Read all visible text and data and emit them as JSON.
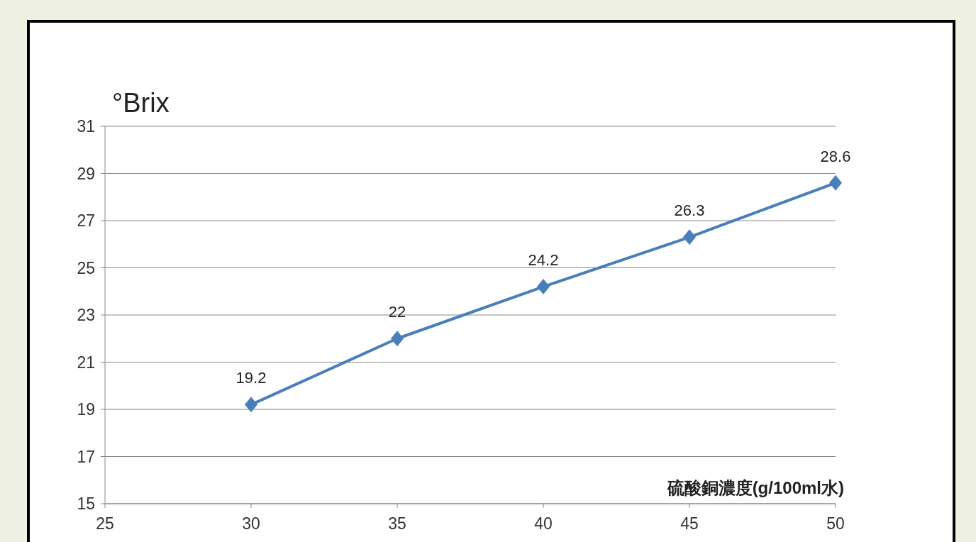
{
  "chart_data": {
    "type": "line",
    "xlabel": "硫酸銅濃度(g/100ml水)",
    "ylabel": "°Brix",
    "x": [
      30,
      35,
      40,
      45,
      50
    ],
    "series": [
      {
        "color": "#4a7ebb",
        "values": [
          19.2,
          22,
          24.2,
          26.3,
          28.6
        ]
      }
    ],
    "xlim": [
      25,
      50
    ],
    "ylim": [
      15,
      31
    ],
    "xticks": [
      25,
      30,
      35,
      40,
      45,
      50
    ],
    "yticks": [
      15,
      17,
      19,
      21,
      23,
      25,
      27,
      29,
      31
    ],
    "grid": "y",
    "marker": "diamond",
    "line_style": "solid",
    "data_labels": true
  }
}
